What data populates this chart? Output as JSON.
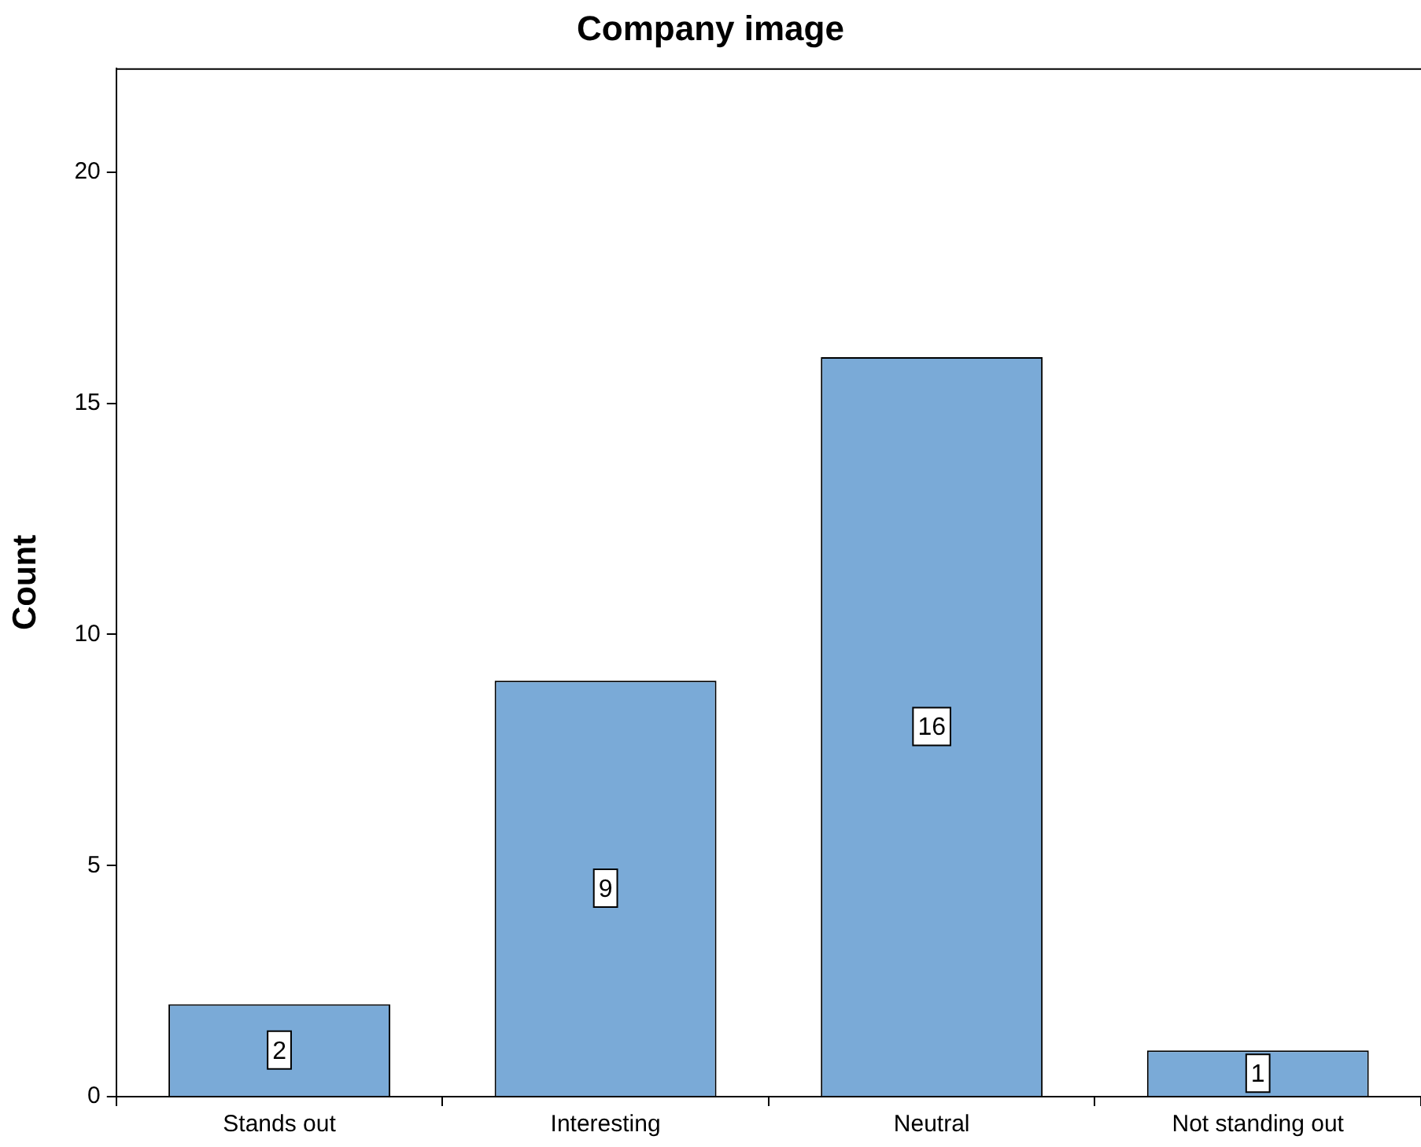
{
  "chart_data": {
    "type": "bar",
    "title": "Company image",
    "ylabel": "Count",
    "categories": [
      "Stands out",
      "Interesting",
      "Neutral",
      "Not standing out"
    ],
    "values": [
      2,
      9,
      16,
      1
    ],
    "color": "#7aaad7",
    "ylim": [
      0,
      22.25
    ],
    "yticks": [
      0,
      5,
      10,
      15,
      20
    ],
    "grid": false,
    "legend": false,
    "data_labels": true
  }
}
